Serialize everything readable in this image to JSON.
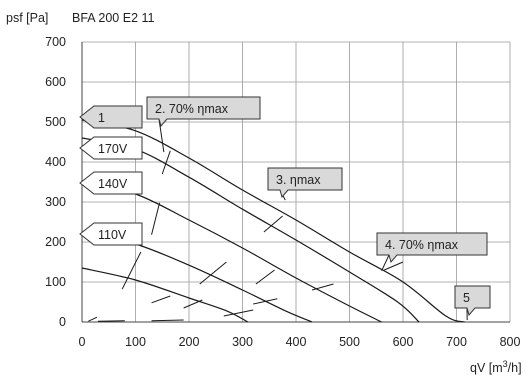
{
  "header": {
    "ylabel": "psf [Pa]",
    "title": "BFA 200 E2 11"
  },
  "chart_data": {
    "type": "line",
    "title": "BFA 200 E2 11",
    "xlabel": "qV [m³/h]",
    "ylabel": "psf [Pa]",
    "xlim": [
      0,
      800
    ],
    "ylim": [
      0,
      700
    ],
    "xticks": [
      0,
      100,
      200,
      300,
      400,
      500,
      600,
      700,
      800
    ],
    "yticks": [
      0,
      100,
      200,
      300,
      400,
      500,
      600,
      700
    ],
    "grid": true,
    "series": [
      {
        "name": "1",
        "points": [
          [
            0,
            505
          ],
          [
            100,
            478
          ],
          [
            200,
            410
          ],
          [
            300,
            330
          ],
          [
            400,
            255
          ],
          [
            500,
            175
          ],
          [
            600,
            100
          ],
          [
            680,
            15
          ],
          [
            715,
            0
          ]
        ]
      },
      {
        "name": "170V",
        "points": [
          [
            0,
            460
          ],
          [
            100,
            432
          ],
          [
            200,
            362
          ],
          [
            300,
            282
          ],
          [
            400,
            205
          ],
          [
            500,
            125
          ],
          [
            590,
            50
          ],
          [
            630,
            0
          ]
        ]
      },
      {
        "name": "140V",
        "points": [
          [
            0,
            350
          ],
          [
            100,
            320
          ],
          [
            200,
            255
          ],
          [
            300,
            185
          ],
          [
            400,
            110
          ],
          [
            500,
            40
          ],
          [
            560,
            0
          ]
        ]
      },
      {
        "name": "110V",
        "points": [
          [
            0,
            225
          ],
          [
            100,
            195
          ],
          [
            200,
            142
          ],
          [
            300,
            80
          ],
          [
            380,
            28
          ],
          [
            430,
            0
          ]
        ]
      },
      {
        "name": "",
        "points": [
          [
            0,
            135
          ],
          [
            100,
            105
          ],
          [
            200,
            60
          ],
          [
            270,
            28
          ],
          [
            310,
            0
          ]
        ]
      }
    ],
    "efficiency_segments": [
      [
        [
          75,
          82
        ],
        [
          110,
          175
        ]
      ],
      [
        [
          130,
          218
        ],
        [
          145,
          298
        ]
      ],
      [
        [
          150,
          370
        ],
        [
          165,
          428
        ]
      ],
      [
        [
          12,
          2
        ],
        [
          28,
          12
        ]
      ],
      [
        [
          130,
          48
        ],
        [
          165,
          65
        ]
      ],
      [
        [
          190,
          35
        ],
        [
          225,
          55
        ]
      ],
      [
        [
          220,
          95
        ],
        [
          270,
          150
        ]
      ],
      [
        [
          265,
          15
        ],
        [
          320,
          30
        ]
      ],
      [
        [
          325,
          95
        ],
        [
          360,
          130
        ]
      ],
      [
        [
          340,
          225
        ],
        [
          375,
          265
        ]
      ],
      [
        [
          320,
          45
        ],
        [
          365,
          58
        ]
      ],
      [
        [
          430,
          80
        ],
        [
          470,
          95
        ]
      ],
      [
        [
          565,
          130
        ],
        [
          600,
          150
        ]
      ],
      [
        [
          130,
          3
        ],
        [
          190,
          5
        ]
      ],
      [
        [
          30,
          2
        ],
        [
          80,
          3
        ]
      ]
    ],
    "annotations": [
      {
        "text": "1",
        "shape": "tag"
      },
      {
        "text": "170V",
        "shape": "tag"
      },
      {
        "text": "140V",
        "shape": "tag"
      },
      {
        "text": "110V",
        "shape": "tag"
      },
      {
        "text": "2. 70% ηmax",
        "shape": "callout",
        "point": [
          153,
          425
        ]
      },
      {
        "text": "3. ηmax",
        "shape": "callout",
        "point": [
          380,
          305
        ]
      },
      {
        "text": "4. 70% ηmax",
        "shape": "callout",
        "point": [
          560,
          128
        ]
      },
      {
        "text": "5",
        "shape": "callout",
        "point": [
          720,
          5
        ]
      }
    ]
  }
}
